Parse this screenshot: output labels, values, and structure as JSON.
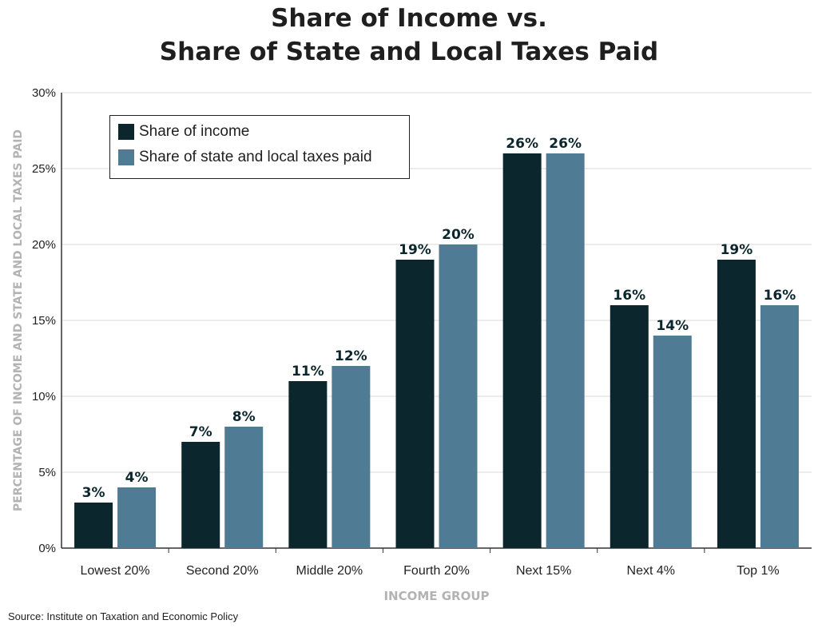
{
  "title": {
    "line1": "Share of Income vs.",
    "line2": "Share of State and Local Taxes Paid"
  },
  "source": "Source: Institute on Taxation and Economic Policy",
  "colors": {
    "income": "#0b262d",
    "taxes": "#4f7b94",
    "grid": "#d9d9d9",
    "axis": "#333333",
    "axis_title": "#b3b3b3"
  },
  "chart_data": {
    "type": "bar",
    "title": "Share of Income vs. Share of State and Local Taxes Paid",
    "xlabel": "INCOME GROUP",
    "ylabel": "PERCENTAGE OF INCOME AND STATE AND LOCAL TAXES PAID",
    "ylim": [
      0,
      30
    ],
    "yticks": [
      "0%",
      "5%",
      "10%",
      "15%",
      "20%",
      "25%",
      "30%"
    ],
    "grid": true,
    "legend_position": "top-left",
    "categories": [
      "Lowest 20%",
      "Second 20%",
      "Middle 20%",
      "Fourth 20%",
      "Next 15%",
      "Next 4%",
      "Top 1%"
    ],
    "series": [
      {
        "name": "Share of income",
        "values": [
          3,
          7,
          11,
          19,
          26,
          16,
          19
        ],
        "labels": [
          "3%",
          "7%",
          "11%",
          "19%",
          "26%",
          "16%",
          "19%"
        ]
      },
      {
        "name": "Share of state and local taxes paid",
        "values": [
          4,
          8,
          12,
          20,
          26,
          14,
          16
        ],
        "labels": [
          "4%",
          "8%",
          "12%",
          "20%",
          "26%",
          "14%",
          "16%"
        ]
      }
    ]
  }
}
